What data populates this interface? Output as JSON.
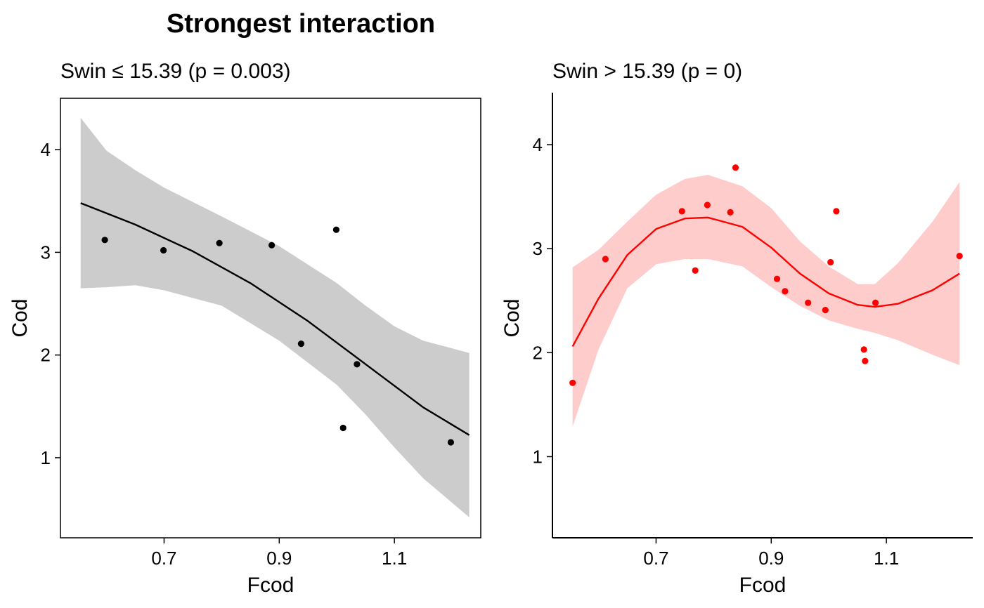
{
  "title": "Strongest interaction",
  "chart_data": [
    {
      "type": "scatter",
      "title": "Swin ≤ 15.39 (p = 0.003)",
      "xlabel": "Fcod",
      "ylabel": "Cod",
      "xlim": [
        0.52,
        1.25
      ],
      "ylim": [
        0.22,
        4.5
      ],
      "xticks": [
        "0.7",
        "0.9",
        "1.1"
      ],
      "yticks": [
        "1",
        "2",
        "3",
        "4"
      ],
      "color": "#000000",
      "ribbon_color": "#cccccc",
      "box": true,
      "grid": false,
      "points": [
        {
          "x": 0.597,
          "y": 3.12
        },
        {
          "x": 0.699,
          "y": 3.02
        },
        {
          "x": 0.796,
          "y": 3.09
        },
        {
          "x": 0.887,
          "y": 3.07
        },
        {
          "x": 0.938,
          "y": 2.11
        },
        {
          "x": 0.999,
          "y": 3.22
        },
        {
          "x": 1.011,
          "y": 1.29
        },
        {
          "x": 1.035,
          "y": 1.91
        },
        {
          "x": 1.198,
          "y": 1.15
        }
      ],
      "fit": [
        {
          "x": 0.555,
          "y": 3.48
        },
        {
          "x": 0.65,
          "y": 3.27
        },
        {
          "x": 0.75,
          "y": 3.01
        },
        {
          "x": 0.85,
          "y": 2.7
        },
        {
          "x": 0.95,
          "y": 2.33
        },
        {
          "x": 1.05,
          "y": 1.91
        },
        {
          "x": 1.15,
          "y": 1.49
        },
        {
          "x": 1.23,
          "y": 1.22
        }
      ],
      "ci_upper": [
        {
          "x": 0.555,
          "y": 4.31
        },
        {
          "x": 0.6,
          "y": 3.99
        },
        {
          "x": 0.65,
          "y": 3.8
        },
        {
          "x": 0.7,
          "y": 3.63
        },
        {
          "x": 0.8,
          "y": 3.35
        },
        {
          "x": 0.9,
          "y": 3.06
        },
        {
          "x": 1.0,
          "y": 2.7
        },
        {
          "x": 1.05,
          "y": 2.48
        },
        {
          "x": 1.1,
          "y": 2.28
        },
        {
          "x": 1.15,
          "y": 2.14
        },
        {
          "x": 1.23,
          "y": 2.02
        }
      ],
      "ci_lower": [
        {
          "x": 0.555,
          "y": 2.65
        },
        {
          "x": 0.6,
          "y": 2.66
        },
        {
          "x": 0.65,
          "y": 2.68
        },
        {
          "x": 0.7,
          "y": 2.63
        },
        {
          "x": 0.8,
          "y": 2.48
        },
        {
          "x": 0.9,
          "y": 2.14
        },
        {
          "x": 1.0,
          "y": 1.71
        },
        {
          "x": 1.05,
          "y": 1.42
        },
        {
          "x": 1.1,
          "y": 1.1
        },
        {
          "x": 1.15,
          "y": 0.8
        },
        {
          "x": 1.23,
          "y": 0.42
        }
      ]
    },
    {
      "type": "scatter",
      "title": "Swin > 15.39 (p = 0)",
      "xlabel": "Fcod",
      "ylabel": "Cod",
      "xlim": [
        0.52,
        1.25
      ],
      "ylim": [
        0.22,
        4.5
      ],
      "xticks": [
        "0.7",
        "0.9",
        "1.1"
      ],
      "yticks": [
        "1",
        "2",
        "3",
        "4"
      ],
      "color": "#ff0000",
      "ribbon_color": "#ffcccc",
      "box": false,
      "grid": false,
      "points": [
        {
          "x": 0.555,
          "y": 1.71
        },
        {
          "x": 0.612,
          "y": 2.9
        },
        {
          "x": 0.745,
          "y": 3.36
        },
        {
          "x": 0.768,
          "y": 2.79
        },
        {
          "x": 0.789,
          "y": 3.42
        },
        {
          "x": 0.829,
          "y": 3.35
        },
        {
          "x": 0.838,
          "y": 3.78
        },
        {
          "x": 0.91,
          "y": 2.71
        },
        {
          "x": 0.924,
          "y": 2.59
        },
        {
          "x": 0.964,
          "y": 2.48
        },
        {
          "x": 0.994,
          "y": 2.41
        },
        {
          "x": 1.003,
          "y": 2.87
        },
        {
          "x": 1.013,
          "y": 3.36
        },
        {
          "x": 1.061,
          "y": 2.03
        },
        {
          "x": 1.063,
          "y": 1.92
        },
        {
          "x": 1.081,
          "y": 2.48
        },
        {
          "x": 1.227,
          "y": 2.93
        }
      ],
      "fit": [
        {
          "x": 0.555,
          "y": 2.06
        },
        {
          "x": 0.6,
          "y": 2.52
        },
        {
          "x": 0.65,
          "y": 2.94
        },
        {
          "x": 0.7,
          "y": 3.19
        },
        {
          "x": 0.75,
          "y": 3.29
        },
        {
          "x": 0.79,
          "y": 3.3
        },
        {
          "x": 0.85,
          "y": 3.21
        },
        {
          "x": 0.9,
          "y": 3.01
        },
        {
          "x": 0.95,
          "y": 2.76
        },
        {
          "x": 1.0,
          "y": 2.57
        },
        {
          "x": 1.05,
          "y": 2.46
        },
        {
          "x": 1.08,
          "y": 2.44
        },
        {
          "x": 1.12,
          "y": 2.47
        },
        {
          "x": 1.18,
          "y": 2.6
        },
        {
          "x": 1.227,
          "y": 2.76
        }
      ],
      "ci_upper": [
        {
          "x": 0.555,
          "y": 2.82
        },
        {
          "x": 0.6,
          "y": 2.99
        },
        {
          "x": 0.65,
          "y": 3.26
        },
        {
          "x": 0.7,
          "y": 3.52
        },
        {
          "x": 0.75,
          "y": 3.67
        },
        {
          "x": 0.79,
          "y": 3.71
        },
        {
          "x": 0.85,
          "y": 3.6
        },
        {
          "x": 0.9,
          "y": 3.39
        },
        {
          "x": 0.95,
          "y": 3.07
        },
        {
          "x": 1.0,
          "y": 2.83
        },
        {
          "x": 1.05,
          "y": 2.66
        },
        {
          "x": 1.08,
          "y": 2.66
        },
        {
          "x": 1.12,
          "y": 2.86
        },
        {
          "x": 1.18,
          "y": 3.26
        },
        {
          "x": 1.227,
          "y": 3.64
        }
      ],
      "ci_lower": [
        {
          "x": 0.555,
          "y": 1.29
        },
        {
          "x": 0.6,
          "y": 2.03
        },
        {
          "x": 0.65,
          "y": 2.62
        },
        {
          "x": 0.7,
          "y": 2.85
        },
        {
          "x": 0.75,
          "y": 2.9
        },
        {
          "x": 0.79,
          "y": 2.9
        },
        {
          "x": 0.85,
          "y": 2.83
        },
        {
          "x": 0.9,
          "y": 2.63
        },
        {
          "x": 0.95,
          "y": 2.45
        },
        {
          "x": 1.0,
          "y": 2.31
        },
        {
          "x": 1.05,
          "y": 2.23
        },
        {
          "x": 1.08,
          "y": 2.19
        },
        {
          "x": 1.12,
          "y": 2.12
        },
        {
          "x": 1.18,
          "y": 1.98
        },
        {
          "x": 1.227,
          "y": 1.88
        }
      ]
    }
  ]
}
